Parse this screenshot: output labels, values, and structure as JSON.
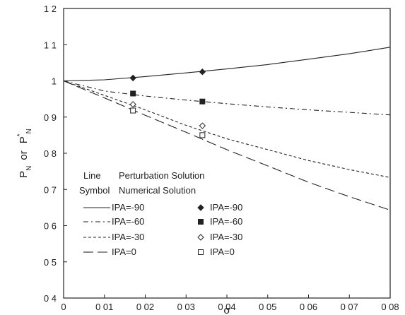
{
  "chart_data": {
    "type": "line",
    "xlabel": "σ",
    "ylabel": {
      "main": "P",
      "sub": "N",
      "or": "or",
      "main2": "P",
      "sup2": "*",
      "sub2": "N"
    },
    "xlim": [
      0,
      0.08
    ],
    "ylim": [
      0.4,
      1.2
    ],
    "x_ticks": [
      0,
      0.01,
      0.02,
      0.03,
      0.04,
      0.05,
      0.06,
      0.07,
      0.08
    ],
    "x_tick_labels": [
      "0",
      "0 01",
      "0 02",
      "0 03",
      "0 04",
      "0 05",
      "0 06",
      "0 07",
      "0 08"
    ],
    "y_ticks": [
      0.4,
      0.5,
      0.6,
      0.7,
      0.8,
      0.9,
      1.0,
      1.1,
      1.2
    ],
    "y_tick_labels": [
      "0 4",
      "0 5",
      "0 6",
      "0 7",
      "0 8",
      "0 9",
      "1",
      "1 1",
      "1 2"
    ],
    "grid": false,
    "series": [
      {
        "name": "IPA=-90",
        "style": "solid",
        "x": [
          0,
          0.01,
          0.02,
          0.03,
          0.04,
          0.05,
          0.06,
          0.07,
          0.08
        ],
        "values": [
          1.0,
          1.003,
          1.012,
          1.022,
          1.033,
          1.045,
          1.06,
          1.075,
          1.093
        ]
      },
      {
        "name": "IPA=-60",
        "style": "dashdot",
        "x": [
          0,
          0.01,
          0.02,
          0.03,
          0.04,
          0.05,
          0.06,
          0.07,
          0.08
        ],
        "values": [
          1.0,
          0.972,
          0.958,
          0.947,
          0.937,
          0.928,
          0.92,
          0.913,
          0.906
        ]
      },
      {
        "name": "IPA=-30",
        "style": "shortdash",
        "x": [
          0,
          0.01,
          0.02,
          0.03,
          0.04,
          0.05,
          0.06,
          0.07,
          0.08
        ],
        "values": [
          1.0,
          0.96,
          0.92,
          0.877,
          0.84,
          0.81,
          0.78,
          0.755,
          0.733
        ]
      },
      {
        "name": "IPA=0",
        "style": "longdash",
        "x": [
          0,
          0.01,
          0.02,
          0.03,
          0.04,
          0.05,
          0.06,
          0.07,
          0.08
        ],
        "values": [
          1.0,
          0.953,
          0.905,
          0.858,
          0.81,
          0.765,
          0.72,
          0.68,
          0.643
        ]
      }
    ],
    "markers": [
      {
        "name": "IPA=-90",
        "symbol": "diamond-filled",
        "x": [
          0.017,
          0.034
        ],
        "values": [
          1.008,
          1.025
        ]
      },
      {
        "name": "IPA=-60",
        "symbol": "square-filled",
        "x": [
          0.017,
          0.034
        ],
        "values": [
          0.965,
          0.943
        ]
      },
      {
        "name": "IPA=-30",
        "symbol": "diamond-open",
        "x": [
          0.017,
          0.034
        ],
        "values": [
          0.935,
          0.876
        ]
      },
      {
        "name": "IPA=0",
        "symbol": "square-open",
        "x": [
          0.017,
          0.034
        ],
        "values": [
          0.918,
          0.85
        ]
      }
    ],
    "legend": {
      "placement": "bottom-left",
      "header_line": [
        "Line",
        "Perturbation Solution"
      ],
      "header_symbol": [
        "Symbol",
        "Numerical Solution"
      ],
      "line_entries": [
        "IPA=-90",
        "IPA=-60",
        "IPA=-30",
        "IPA=0"
      ],
      "symbol_entries": [
        "IPA=-90",
        "IPA=-60",
        "IPA=-30",
        "IPA=0"
      ]
    }
  }
}
